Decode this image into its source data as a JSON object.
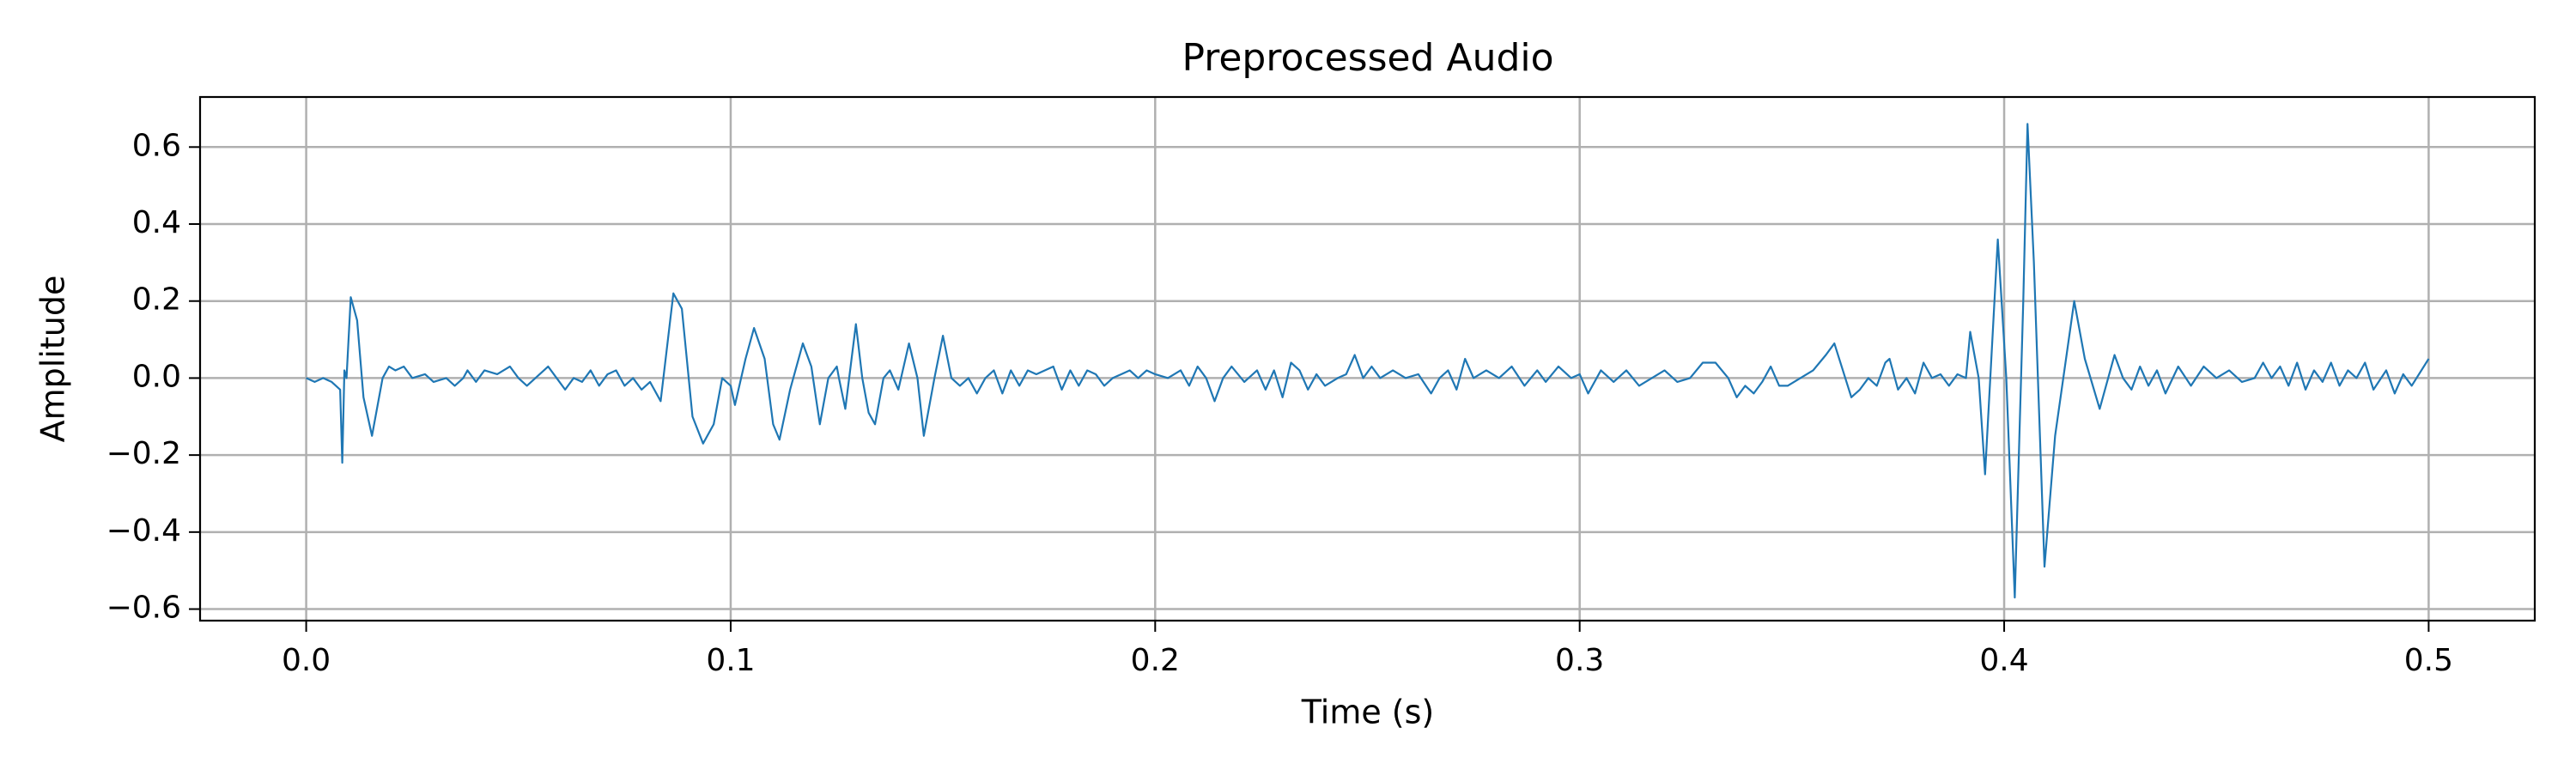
{
  "chart_data": {
    "type": "line",
    "title": "Preprocessed Audio",
    "xlabel": "Time (s)",
    "ylabel": "Amplitude",
    "color": "#1f77b4",
    "grid": true,
    "xlim": [
      -0.025,
      0.525
    ],
    "ylim": [
      -0.63,
      0.73
    ],
    "xticks": [
      {
        "value": 0,
        "label": "0.0"
      },
      0.1,
      0.2,
      0.3,
      0.4,
      0.5
    ],
    "yticks": [
      {
        "value": -0.6,
        "label": "−0.6"
      },
      {
        "value": -0.4,
        "label": "−0.4"
      },
      {
        "value": -0.2,
        "label": "−0.2"
      },
      {
        "value": 0,
        "label": "0.0"
      },
      0.2,
      0.4,
      0.6
    ],
    "x": [
      0.0,
      0.002,
      0.004,
      0.006,
      0.008,
      0.0085,
      0.009,
      0.0095,
      0.0105,
      0.012,
      0.0135,
      0.0155,
      0.018,
      0.0195,
      0.021,
      0.023,
      0.025,
      0.028,
      0.03,
      0.033,
      0.035,
      0.037,
      0.038,
      0.04,
      0.042,
      0.045,
      0.048,
      0.05,
      0.052,
      0.055,
      0.057,
      0.059,
      0.061,
      0.063,
      0.065,
      0.067,
      0.069,
      0.071,
      0.073,
      0.075,
      0.077,
      0.079,
      0.081,
      0.0835,
      0.0865,
      0.0885,
      0.091,
      0.0935,
      0.096,
      0.098,
      0.1,
      0.101,
      0.1035,
      0.1055,
      0.108,
      0.11,
      0.1115,
      0.114,
      0.117,
      0.119,
      0.121,
      0.123,
      0.125,
      0.1255,
      0.127,
      0.1295,
      0.131,
      0.1325,
      0.134,
      0.136,
      0.1375,
      0.1395,
      0.142,
      0.144,
      0.1455,
      0.148,
      0.15,
      0.152,
      0.154,
      0.156,
      0.158,
      0.16,
      0.162,
      0.164,
      0.166,
      0.168,
      0.17,
      0.172,
      0.174,
      0.176,
      0.178,
      0.18,
      0.182,
      0.184,
      0.186,
      0.188,
      0.19,
      0.192,
      0.194,
      0.196,
      0.198,
      0.2,
      0.203,
      0.206,
      0.208,
      0.21,
      0.212,
      0.214,
      0.216,
      0.218,
      0.221,
      0.224,
      0.226,
      0.228,
      0.23,
      0.232,
      0.234,
      0.236,
      0.238,
      0.24,
      0.243,
      0.245,
      0.247,
      0.249,
      0.251,
      0.253,
      0.256,
      0.259,
      0.262,
      0.265,
      0.267,
      0.269,
      0.271,
      0.273,
      0.275,
      0.278,
      0.281,
      0.284,
      0.287,
      0.29,
      0.292,
      0.295,
      0.298,
      0.3,
      0.302,
      0.305,
      0.308,
      0.311,
      0.314,
      0.317,
      0.32,
      0.323,
      0.326,
      0.329,
      0.332,
      0.335,
      0.337,
      0.339,
      0.341,
      0.343,
      0.345,
      0.347,
      0.349,
      0.352,
      0.355,
      0.358,
      0.36,
      0.362,
      0.364,
      0.366,
      0.368,
      0.37,
      0.372,
      0.373,
      0.375,
      0.377,
      0.379,
      0.381,
      0.383,
      0.385,
      0.387,
      0.389,
      0.391,
      0.392,
      0.394,
      0.3955,
      0.3985,
      0.4005,
      0.4025,
      0.4045,
      0.4055,
      0.407,
      0.4095,
      0.412,
      0.4165,
      0.419,
      0.4225,
      0.426,
      0.428,
      0.43,
      0.432,
      0.434,
      0.436,
      0.438,
      0.441,
      0.444,
      0.447,
      0.45,
      0.453,
      0.456,
      0.459,
      0.461,
      0.463,
      0.465,
      0.467,
      0.469,
      0.471,
      0.473,
      0.475,
      0.477,
      0.479,
      0.481,
      0.483,
      0.485,
      0.487,
      0.49,
      0.492,
      0.494,
      0.496,
      0.5
    ],
    "values": [
      0.0,
      -0.01,
      0.0,
      -0.01,
      -0.03,
      -0.22,
      0.02,
      0.0,
      0.21,
      0.15,
      -0.05,
      -0.15,
      0.0,
      0.03,
      0.02,
      0.03,
      0.0,
      0.01,
      -0.01,
      0.0,
      -0.02,
      0.0,
      0.02,
      -0.01,
      0.02,
      0.01,
      0.03,
      0.0,
      -0.02,
      0.01,
      0.03,
      0.0,
      -0.03,
      0.0,
      -0.01,
      0.02,
      -0.02,
      0.01,
      0.02,
      -0.02,
      0.0,
      -0.03,
      -0.01,
      -0.06,
      0.22,
      0.18,
      -0.1,
      -0.17,
      -0.12,
      0.0,
      -0.02,
      -0.07,
      0.05,
      0.13,
      0.05,
      -0.12,
      -0.16,
      -0.03,
      0.09,
      0.03,
      -0.12,
      0.0,
      0.03,
      0.0,
      -0.08,
      0.14,
      0.0,
      -0.09,
      -0.12,
      0.0,
      0.02,
      -0.03,
      0.09,
      0.0,
      -0.15,
      0.0,
      0.11,
      0.0,
      -0.02,
      0.0,
      -0.04,
      0.0,
      0.02,
      -0.04,
      0.02,
      -0.02,
      0.02,
      0.01,
      0.02,
      0.03,
      -0.03,
      0.02,
      -0.02,
      0.02,
      0.01,
      -0.02,
      0.0,
      0.01,
      0.02,
      0.0,
      0.02,
      0.01,
      0.0,
      0.02,
      -0.02,
      0.03,
      0.0,
      -0.06,
      0.0,
      0.03,
      -0.01,
      0.02,
      -0.03,
      0.02,
      -0.05,
      0.04,
      0.02,
      -0.03,
      0.01,
      -0.02,
      0.0,
      0.01,
      0.06,
      0.0,
      0.03,
      0.0,
      0.02,
      0.0,
      0.01,
      -0.04,
      0.0,
      0.02,
      -0.03,
      0.05,
      0.0,
      0.02,
      0.0,
      0.03,
      -0.02,
      0.02,
      -0.01,
      0.03,
      0.0,
      0.01,
      -0.04,
      0.02,
      -0.01,
      0.02,
      -0.02,
      0.0,
      0.02,
      -0.01,
      0.0,
      0.04,
      0.04,
      0.0,
      -0.05,
      -0.02,
      -0.04,
      -0.01,
      0.03,
      -0.02,
      -0.02,
      0.0,
      0.02,
      0.06,
      0.09,
      0.02,
      -0.05,
      -0.03,
      0.0,
      -0.02,
      0.04,
      0.05,
      -0.03,
      0.0,
      -0.04,
      0.04,
      0.0,
      0.01,
      -0.02,
      0.01,
      0.0,
      0.12,
      0.0,
      -0.25,
      0.36,
      0.0,
      -0.57,
      0.2,
      0.66,
      0.3,
      -0.49,
      -0.15,
      0.2,
      0.05,
      -0.08,
      0.06,
      0.0,
      -0.03,
      0.03,
      -0.02,
      0.02,
      -0.04,
      0.03,
      -0.02,
      0.03,
      0.0,
      0.02,
      -0.01,
      0.0,
      0.04,
      0.0,
      0.03,
      -0.02,
      0.04,
      -0.03,
      0.02,
      -0.01,
      0.04,
      -0.02,
      0.02,
      0.0,
      0.04,
      -0.03,
      0.02,
      -0.04,
      0.01,
      -0.02,
      0.05
    ]
  }
}
